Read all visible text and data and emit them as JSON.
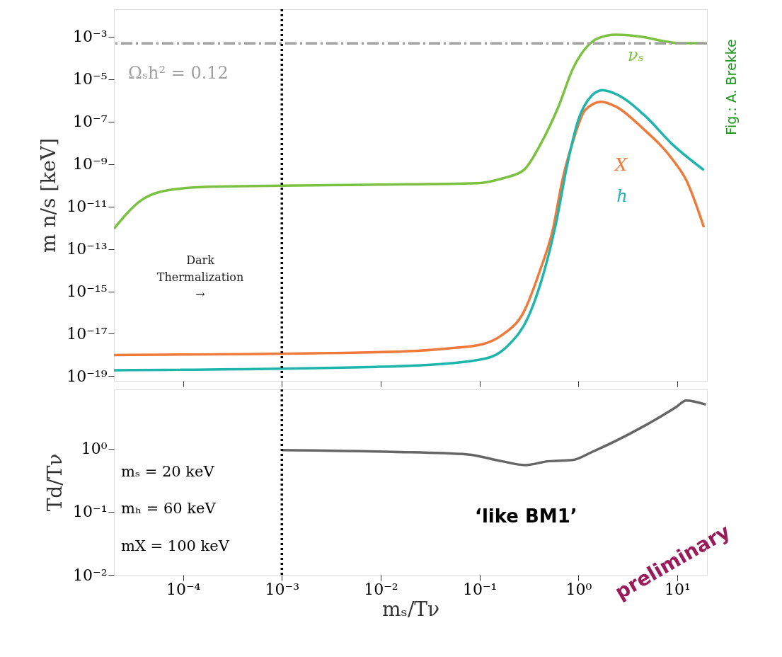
{
  "chart_data": [
    {
      "type": "line",
      "ylabel": "m n/s  [keV]",
      "log": "xy",
      "tick_labels": "y",
      "xlim": [
        2e-05,
        20
      ],
      "ylim": [
        6e-20,
        0.02
      ],
      "xticks": [
        {
          "value": 0.0001,
          "label": null
        },
        {
          "value": 0.001,
          "label": null
        },
        {
          "value": 0.01,
          "label": null
        },
        {
          "value": 0.1,
          "label": null
        },
        {
          "value": 1,
          "label": null
        },
        {
          "value": 10,
          "label": null
        }
      ],
      "yticks": [
        {
          "value": 0.001,
          "label": "10⁻³"
        },
        {
          "value": 1e-05,
          "label": "10⁻⁵"
        },
        {
          "value": 1e-07,
          "label": "10⁻⁷"
        },
        {
          "value": 1e-09,
          "label": "10⁻⁹"
        },
        {
          "value": 1e-11,
          "label": "10⁻¹¹"
        },
        {
          "value": 1e-13,
          "label": "10⁻¹³"
        },
        {
          "value": 1e-15,
          "label": "10⁻¹⁵"
        },
        {
          "value": 1e-17,
          "label": "10⁻¹⁷"
        },
        {
          "value": 1e-19,
          "label": "10⁻¹⁹"
        }
      ],
      "series": [
        {
          "name": "νₛ",
          "color": "#7cc242",
          "x": [
            2e-05,
            3.8e-05,
            7.8e-05,
            0.000186,
            0.0091,
            0.095,
            0.17,
            0.28,
            0.41,
            0.62,
            0.89,
            1.26,
            1.58,
            2.4,
            4.4,
            7.8,
            10.5,
            18.6
          ],
          "values": [
            8.9e-13,
            2e-11,
            6.3e-11,
            8.5e-11,
            1.07e-10,
            1.26e-10,
            2.1e-10,
            5.2e-10,
            7.9e-09,
            4.4e-07,
            3.5e-05,
            0.0004,
            0.00085,
            0.00126,
            0.001,
            0.00059,
            0.0005,
            0.0005
          ]
        },
        {
          "name": "X",
          "color": "#f07a3a",
          "x": [
            2e-05,
            0.0091,
            0.052,
            0.107,
            0.17,
            0.28,
            0.41,
            0.55,
            0.69,
            0.89,
            1.17,
            1.7,
            2.4,
            4.4,
            9.1,
            12.3,
            18.6
          ],
          "values": [
            1e-18,
            1.35e-18,
            2.1e-18,
            3.2e-18,
            8.9e-18,
            1.07e-16,
            1e-14,
            7.8e-13,
            1.8e-10,
            1.35e-08,
            3.5e-07,
            8.7e-07,
            5.1e-07,
            5.2e-08,
            1.5e-09,
            1.8e-10,
            1.05e-12
          ]
        },
        {
          "name": "h",
          "color": "#1fb5ac",
          "x": [
            2e-05,
            0.0091,
            0.052,
            0.129,
            0.2,
            0.31,
            0.44,
            0.59,
            0.78,
            1.0,
            1.35,
            1.74,
            2.4,
            4.6,
            9.1,
            18.6
          ],
          "values": [
            1.9e-19,
            2.75e-19,
            4.1e-19,
            7.9e-19,
            3.2e-18,
            6e-17,
            6e-15,
            1.4e-12,
            1.2e-09,
            1.23e-07,
            1.6e-06,
            3e-06,
            2e-06,
            2.1e-07,
            7.9e-09,
            5.2e-10
          ]
        }
      ],
      "ref_lines": [
        {
          "axis": "y",
          "value": 0.00049,
          "color": "#a0a0a0",
          "line_style": "dashed"
        },
        {
          "axis": "x",
          "value": 0.001,
          "color": "#000000",
          "line_style": "dotted"
        }
      ],
      "annotations": [
        "Ωₛh² = 0.12",
        "Dark\nThermalization\n→",
        "Fig.: A. Brekke"
      ]
    },
    {
      "type": "line",
      "xlabel": "mₛ/Tν",
      "ylabel": "Td/Tν",
      "log": "xy",
      "xlim": [
        2e-05,
        20
      ],
      "ylim": [
        0.01,
        8.7
      ],
      "xticks": [
        {
          "value": 0.0001,
          "label": "10⁻⁴"
        },
        {
          "value": 0.001,
          "label": "10⁻³"
        },
        {
          "value": 0.01,
          "label": "10⁻²"
        },
        {
          "value": 0.1,
          "label": "10⁻¹"
        },
        {
          "value": 1,
          "label": "10⁰"
        },
        {
          "value": 10,
          "label": "10¹"
        }
      ],
      "yticks": [
        {
          "value": 0.01,
          "label": "10⁻²"
        },
        {
          "value": 0.1,
          "label": "10⁻¹"
        },
        {
          "value": 1,
          "label": "10⁰"
        }
      ],
      "series": [
        {
          "color": "#666666",
          "x": [
            0.001,
            0.0132,
            0.076,
            0.17,
            0.29,
            0.49,
            0.87,
            1.38,
            4.4,
            9.8,
            12.3,
            19.5
          ],
          "values": [
            0.95,
            0.89,
            0.81,
            0.63,
            0.55,
            0.63,
            0.66,
            0.89,
            2.19,
            4.6,
            5.8,
            5.0
          ]
        }
      ],
      "ref_lines": [
        {
          "axis": "x",
          "value": 0.001,
          "color": "#000000",
          "line_style": "dotted"
        }
      ],
      "annotations": [
        "mₛ = 20 keV",
        "mₕ = 60 keV",
        "mX = 100 keV",
        "‘like BM1’",
        "preliminary"
      ]
    }
  ]
}
